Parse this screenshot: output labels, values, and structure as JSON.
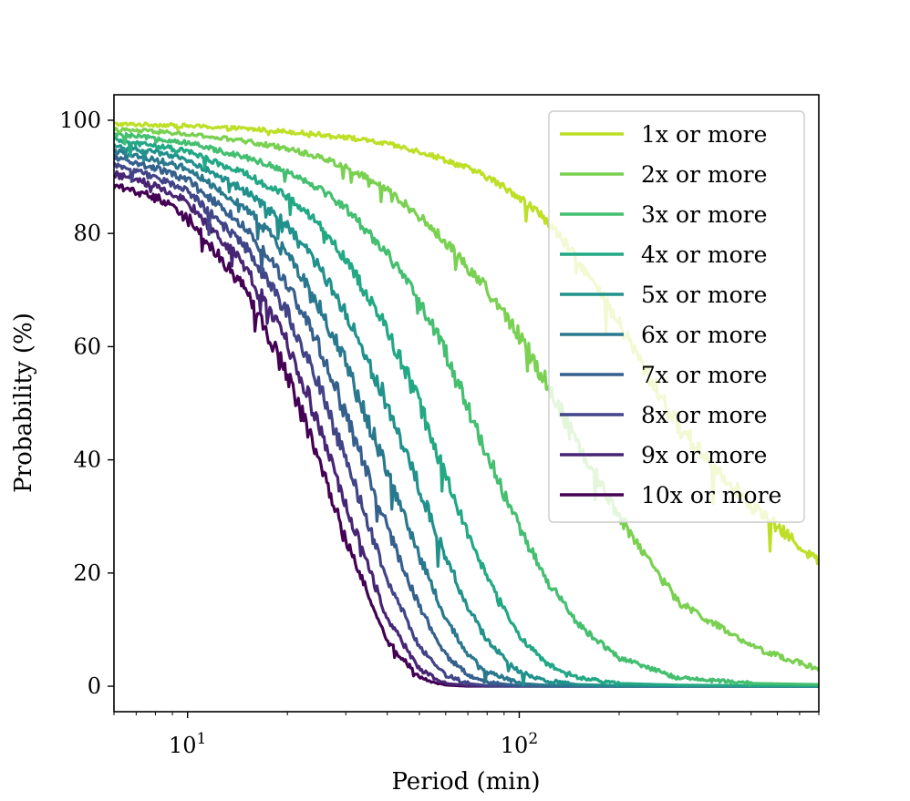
{
  "chart_data": {
    "type": "line",
    "title": "",
    "xlabel": "Period (min)",
    "ylabel": "Probability (%)",
    "xscale": "log",
    "xlim": [
      6,
      800
    ],
    "ylim": [
      -4.5,
      104.5
    ],
    "grid": false,
    "legend_position": "top-right",
    "x_ticks": [
      {
        "value": 10,
        "base": "10",
        "exp": "1"
      },
      {
        "value": 100,
        "base": "10",
        "exp": "2"
      }
    ],
    "y_ticks": [
      {
        "value": 0,
        "label": "0"
      },
      {
        "value": 20,
        "label": "20"
      },
      {
        "value": 40,
        "label": "40"
      },
      {
        "value": 60,
        "label": "60"
      },
      {
        "value": 80,
        "label": "80"
      },
      {
        "value": 100,
        "label": "100"
      }
    ],
    "x": [
      6,
      8,
      10,
      15,
      20,
      25,
      30,
      40,
      50,
      60,
      70,
      80,
      100,
      120,
      150,
      200,
      300,
      500,
      800
    ],
    "series": [
      {
        "name": "1x or more",
        "color": "#bddf26",
        "values": [
          99.3,
          99.2,
          99.0,
          98.5,
          98.0,
          97.5,
          97.0,
          95.8,
          94.5,
          93.0,
          91.5,
          90.0,
          86.5,
          82.5,
          75.5,
          64.0,
          46.0,
          32.0,
          22.0
        ]
      },
      {
        "name": "2x or more",
        "color": "#7ad151",
        "values": [
          98.3,
          98.0,
          97.5,
          96.3,
          95.0,
          93.5,
          91.8,
          87.8,
          83.0,
          78.5,
          74.0,
          70.0,
          62.0,
          54.0,
          43.0,
          30.0,
          15.0,
          7.0,
          3.0
        ]
      },
      {
        "name": "3x or more",
        "color": "#44bf70",
        "values": [
          97.5,
          96.8,
          96.0,
          93.5,
          91.0,
          88.0,
          84.5,
          76.5,
          68.0,
          59.0,
          49.0,
          41.0,
          28.0,
          19.0,
          11.0,
          5.0,
          1.5,
          0.5,
          0.3
        ]
      },
      {
        "name": "4x or more",
        "color": "#22a884",
        "values": [
          96.5,
          95.5,
          94.5,
          90.5,
          86.5,
          81.5,
          75.5,
          63.0,
          50.0,
          37.0,
          27.0,
          19.0,
          9.0,
          4.0,
          1.5,
          0.5,
          0.2,
          0.1,
          0.1
        ]
      },
      {
        "name": "5x or more",
        "color": "#21918c",
        "values": [
          95.5,
          94.3,
          93.0,
          87.5,
          81.5,
          74.0,
          66.0,
          50.0,
          35.0,
          23.0,
          14.0,
          8.0,
          2.5,
          1.0,
          0.3,
          0.1,
          0.1,
          0.0,
          0.0
        ]
      },
      {
        "name": "6x or more",
        "color": "#2a788e",
        "values": [
          94.5,
          93.0,
          91.5,
          84.5,
          76.5,
          67.0,
          57.0,
          38.0,
          23.0,
          12.0,
          5.5,
          2.5,
          0.5,
          0.2,
          0.1,
          0.0,
          0.0,
          0.0,
          0.0
        ]
      },
      {
        "name": "7x or more",
        "color": "#355f8d",
        "values": [
          93.5,
          91.5,
          89.5,
          81.0,
          71.0,
          60.0,
          48.0,
          28.0,
          14.0,
          5.5,
          2.0,
          0.7,
          0.1,
          0.0,
          0.0,
          0.0,
          0.0,
          0.0,
          0.0
        ]
      },
      {
        "name": "8x or more",
        "color": "#414487",
        "values": [
          92.0,
          90.0,
          87.5,
          77.5,
          66.0,
          53.0,
          40.0,
          19.0,
          7.0,
          2.0,
          0.5,
          0.1,
          0.0,
          0.0,
          0.0,
          0.0,
          0.0,
          0.0,
          0.0
        ]
      },
      {
        "name": "9x or more",
        "color": "#482475",
        "values": [
          90.5,
          88.5,
          85.5,
          74.0,
          61.0,
          46.0,
          32.0,
          12.0,
          3.0,
          0.5,
          0.1,
          0.0,
          0.0,
          0.0,
          0.0,
          0.0,
          0.0,
          0.0,
          0.0
        ]
      },
      {
        "name": "10x or more",
        "color": "#440154",
        "values": [
          88.5,
          86.5,
          83.0,
          70.0,
          55.0,
          40.0,
          26.0,
          8.0,
          1.5,
          0.2,
          0.0,
          0.0,
          0.0,
          0.0,
          0.0,
          0.0,
          0.0,
          0.0,
          0.0
        ]
      }
    ]
  }
}
